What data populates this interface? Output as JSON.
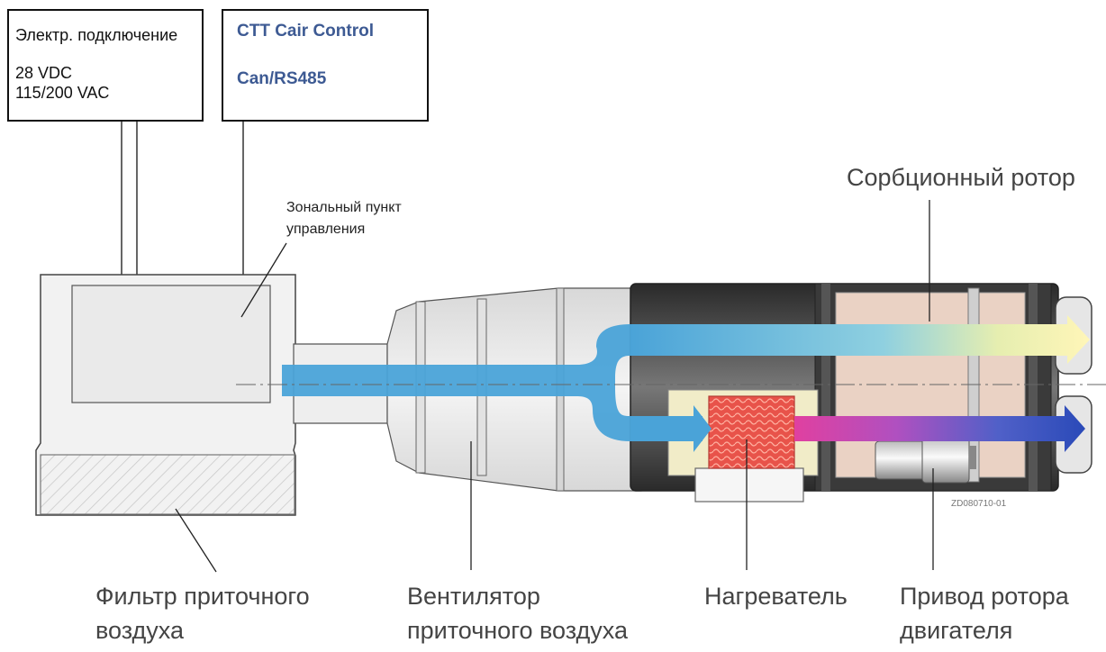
{
  "power_box": {
    "title": "Электр. подключение",
    "line1": "28 VDC",
    "line2": "115/200 VAC"
  },
  "control_box": {
    "line1": "CTT Cair Control",
    "line2": "Can/RS485"
  },
  "zone_label": {
    "line1": "Зональный пункт",
    "line2": "управления"
  },
  "labels": {
    "rotor": "Сорбционный ротор",
    "filter_line1": "Фильтр приточного",
    "filter_line2": "воздуха",
    "fan_line1": "Вентилятор",
    "fan_line2": "приточного воздуха",
    "heater": "Нагреватель",
    "drive_line1": "Привод ротора",
    "drive_line2": "двигателя"
  },
  "drawing_code": "ZD080710-01",
  "colors": {
    "control_text": "#3d5a93",
    "label_text": "#444444",
    "airflow_blue": "#4aa3d8",
    "heater_red": "#e8534a"
  }
}
